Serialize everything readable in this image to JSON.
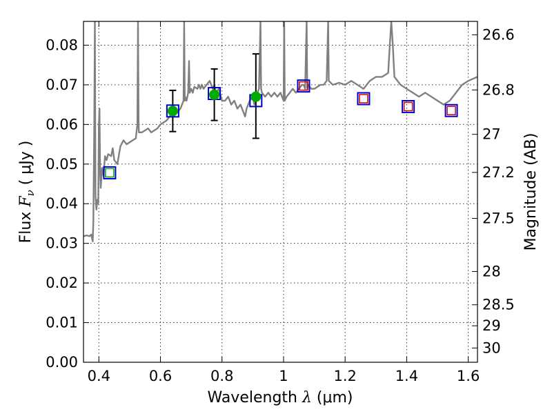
{
  "chart_data": {
    "type": "scatter",
    "title": "",
    "xlabel": "Wavelength  λ (μm)",
    "ylabel": "Flux  F_ν  ( μJy )",
    "y2label": "Magnitude (AB)",
    "labels": {
      "xlabel_prefix": "Wavelength  ",
      "xlabel_lambda": "λ",
      "xlabel_units": " (μm)",
      "ylabel_prefix": "Flux  ",
      "ylabel_F": "F",
      "ylabel_nu": "ν",
      "ylabel_units": "  ( μJy )",
      "y2label": "Magnitude (AB)"
    },
    "xlim": [
      0.35,
      1.63
    ],
    "ylim": [
      0.0,
      0.086
    ],
    "grid": true,
    "x_ticks": [
      0.4,
      0.6,
      0.8,
      1.0,
      1.2,
      1.4,
      1.6
    ],
    "x_tick_labels": [
      "0.4",
      "0.6",
      "0.8",
      "1",
      "1.2",
      "1.4",
      "1.6"
    ],
    "y_ticks": [
      0.0,
      0.01,
      0.02,
      0.03,
      0.04,
      0.05,
      0.06,
      0.07,
      0.08
    ],
    "y_tick_labels": [
      "0.00",
      "0.01",
      "0.02",
      "0.03",
      "0.04",
      "0.05",
      "0.06",
      "0.07",
      "0.08"
    ],
    "y2_ticks": [
      {
        "label": "26.6",
        "flux": 0.0826
      },
      {
        "label": "26.8",
        "flux": 0.0687
      },
      {
        "label": "27",
        "flux": 0.0575
      },
      {
        "label": "27.2",
        "flux": 0.0479
      },
      {
        "label": "27.5",
        "flux": 0.0363
      },
      {
        "label": "28",
        "flux": 0.0229
      },
      {
        "label": "28.5",
        "flux": 0.0145
      },
      {
        "label": "29",
        "flux": 0.0092
      },
      {
        "label": "30",
        "flux": 0.0036
      }
    ],
    "series": [
      {
        "kind": "model-spectrum",
        "color": "#808080",
        "points": [
          [
            0.35,
            0.0318
          ],
          [
            0.36,
            0.032
          ],
          [
            0.37,
            0.0318
          ],
          [
            0.375,
            0.0322
          ],
          [
            0.38,
            0.0305
          ],
          [
            0.382,
            0.0355
          ],
          [
            0.385,
            0.06
          ],
          [
            0.387,
            0.086
          ],
          [
            0.389,
            0.042
          ],
          [
            0.392,
            0.0385
          ],
          [
            0.395,
            0.041
          ],
          [
            0.398,
            0.04
          ],
          [
            0.4,
            0.06
          ],
          [
            0.402,
            0.064
          ],
          [
            0.404,
            0.048
          ],
          [
            0.406,
            0.044
          ],
          [
            0.41,
            0.049
          ],
          [
            0.415,
            0.047
          ],
          [
            0.42,
            0.052
          ],
          [
            0.425,
            0.051
          ],
          [
            0.43,
            0.0525
          ],
          [
            0.44,
            0.052
          ],
          [
            0.445,
            0.054
          ],
          [
            0.45,
            0.051
          ],
          [
            0.46,
            0.05
          ],
          [
            0.47,
            0.0545
          ],
          [
            0.48,
            0.056
          ],
          [
            0.49,
            0.055
          ],
          [
            0.5,
            0.0555
          ],
          [
            0.51,
            0.056
          ],
          [
            0.52,
            0.0565
          ],
          [
            0.525,
            0.06
          ],
          [
            0.527,
            0.086
          ],
          [
            0.529,
            0.06
          ],
          [
            0.53,
            0.058
          ],
          [
            0.54,
            0.058
          ],
          [
            0.55,
            0.0585
          ],
          [
            0.56,
            0.059
          ],
          [
            0.57,
            0.058
          ],
          [
            0.58,
            0.0585
          ],
          [
            0.59,
            0.059
          ],
          [
            0.6,
            0.06
          ],
          [
            0.61,
            0.0605
          ],
          [
            0.62,
            0.061
          ],
          [
            0.63,
            0.062
          ],
          [
            0.64,
            0.063
          ],
          [
            0.645,
            0.062
          ],
          [
            0.65,
            0.064
          ],
          [
            0.655,
            0.063
          ],
          [
            0.66,
            0.0635
          ],
          [
            0.665,
            0.064
          ],
          [
            0.67,
            0.065
          ],
          [
            0.675,
            0.066
          ],
          [
            0.677,
            0.086
          ],
          [
            0.679,
            0.066
          ],
          [
            0.68,
            0.067
          ],
          [
            0.685,
            0.066
          ],
          [
            0.69,
            0.068
          ],
          [
            0.693,
            0.076
          ],
          [
            0.695,
            0.068
          ],
          [
            0.7,
            0.069
          ],
          [
            0.705,
            0.068
          ],
          [
            0.71,
            0.0695
          ],
          [
            0.72,
            0.069
          ],
          [
            0.725,
            0.07
          ],
          [
            0.73,
            0.069
          ],
          [
            0.735,
            0.07
          ],
          [
            0.74,
            0.069
          ],
          [
            0.75,
            0.07
          ],
          [
            0.76,
            0.071
          ],
          [
            0.77,
            0.069
          ],
          [
            0.775,
            0.07
          ],
          [
            0.78,
            0.068
          ],
          [
            0.79,
            0.069
          ],
          [
            0.8,
            0.066
          ],
          [
            0.81,
            0.066
          ],
          [
            0.82,
            0.067
          ],
          [
            0.83,
            0.065
          ],
          [
            0.84,
            0.066
          ],
          [
            0.85,
            0.064
          ],
          [
            0.86,
            0.065
          ],
          [
            0.87,
            0.063
          ],
          [
            0.875,
            0.062
          ],
          [
            0.88,
            0.064
          ],
          [
            0.89,
            0.066
          ],
          [
            0.9,
            0.067
          ],
          [
            0.905,
            0.065
          ],
          [
            0.91,
            0.067
          ],
          [
            0.92,
            0.069
          ],
          [
            0.925,
            0.086
          ],
          [
            0.927,
            0.069
          ],
          [
            0.93,
            0.068
          ],
          [
            0.94,
            0.067
          ],
          [
            0.95,
            0.068
          ],
          [
            0.96,
            0.067
          ],
          [
            0.97,
            0.068
          ],
          [
            0.98,
            0.067
          ],
          [
            0.99,
            0.068
          ],
          [
            1.0,
            0.066
          ],
          [
            1.002,
            0.086
          ],
          [
            1.004,
            0.066
          ],
          [
            1.01,
            0.067
          ],
          [
            1.02,
            0.068
          ],
          [
            1.03,
            0.069
          ],
          [
            1.04,
            0.068
          ],
          [
            1.05,
            0.069
          ],
          [
            1.06,
            0.07
          ],
          [
            1.065,
            0.07
          ],
          [
            1.07,
            0.069
          ],
          [
            1.075,
            0.086
          ],
          [
            1.077,
            0.069
          ],
          [
            1.08,
            0.07
          ],
          [
            1.09,
            0.069
          ],
          [
            1.1,
            0.069
          ],
          [
            1.12,
            0.07
          ],
          [
            1.13,
            0.07
          ],
          [
            1.14,
            0.071
          ],
          [
            1.145,
            0.086
          ],
          [
            1.147,
            0.071
          ],
          [
            1.16,
            0.07
          ],
          [
            1.18,
            0.0705
          ],
          [
            1.2,
            0.07
          ],
          [
            1.22,
            0.071
          ],
          [
            1.24,
            0.07
          ],
          [
            1.26,
            0.069
          ],
          [
            1.28,
            0.071
          ],
          [
            1.3,
            0.072
          ],
          [
            1.32,
            0.072
          ],
          [
            1.34,
            0.073
          ],
          [
            1.345,
            0.08
          ],
          [
            1.35,
            0.086
          ],
          [
            1.355,
            0.08
          ],
          [
            1.36,
            0.072
          ],
          [
            1.38,
            0.07
          ],
          [
            1.4,
            0.069
          ],
          [
            1.42,
            0.068
          ],
          [
            1.44,
            0.067
          ],
          [
            1.46,
            0.068
          ],
          [
            1.48,
            0.067
          ],
          [
            1.5,
            0.066
          ],
          [
            1.52,
            0.065
          ],
          [
            1.54,
            0.066
          ],
          [
            1.56,
            0.068
          ],
          [
            1.58,
            0.07
          ],
          [
            1.6,
            0.071
          ],
          [
            1.63,
            0.072
          ]
        ]
      },
      {
        "kind": "model-photometry",
        "marker": "square",
        "color": "#0000cc",
        "points": [
          [
            0.435,
            0.0478
          ],
          [
            0.64,
            0.0634
          ],
          [
            0.775,
            0.0678
          ],
          [
            0.91,
            0.066
          ],
          [
            1.065,
            0.0697
          ],
          [
            1.26,
            0.0665
          ],
          [
            1.405,
            0.0645
          ],
          [
            1.545,
            0.0635
          ]
        ]
      },
      {
        "kind": "observed-photometry",
        "marker": "circle",
        "color": "#00aa00",
        "points": [
          {
            "x": 0.435,
            "y": 0.0478,
            "yerr": [
              0.0478,
              0.0478
            ]
          },
          {
            "x": 0.64,
            "y": 0.0634,
            "yerr": [
              0.0582,
              0.0686
            ]
          },
          {
            "x": 0.775,
            "y": 0.0675,
            "yerr": [
              0.061,
              0.074
            ]
          },
          {
            "x": 0.91,
            "y": 0.067,
            "yerr": [
              0.0565,
              0.0778
            ]
          }
        ]
      },
      {
        "kind": "upper-limit",
        "marker": "square",
        "color": "#cc0000",
        "points": [
          [
            1.065,
            0.0697
          ],
          [
            1.26,
            0.0665
          ],
          [
            1.405,
            0.0645
          ],
          [
            1.545,
            0.0635
          ]
        ]
      }
    ]
  }
}
